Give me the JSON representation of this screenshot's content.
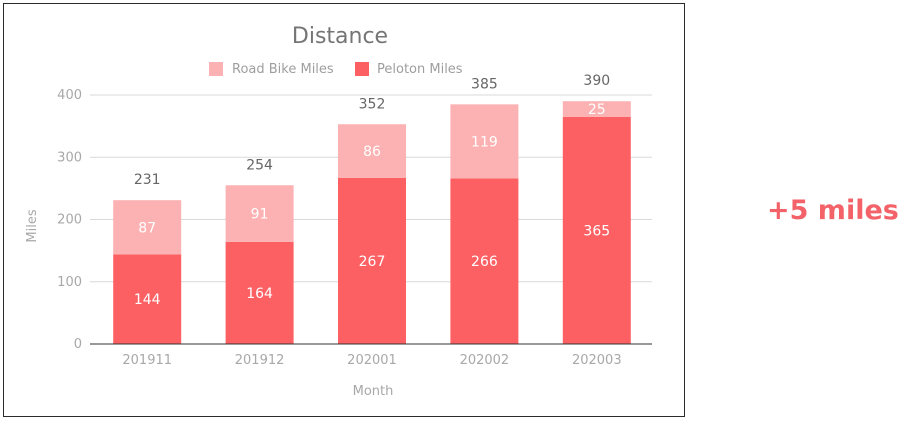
{
  "chart_data": {
    "type": "bar",
    "stacked": true,
    "title": "Distance",
    "xlabel": "Month",
    "ylabel": "Miles",
    "ylim": [
      0,
      400
    ],
    "yticks": [
      "0",
      "100",
      "200",
      "300",
      "400"
    ],
    "categories": [
      "201911",
      "201912",
      "202001",
      "202002",
      "202003"
    ],
    "series": [
      {
        "name": "Peloton Miles",
        "color": "#fd6063",
        "values": [
          144,
          164,
          267,
          266,
          365
        ],
        "labels": [
          "144",
          "164",
          "267",
          "266",
          "365"
        ]
      },
      {
        "name": "Road Bike Miles",
        "color": "#fcb1b2",
        "values": [
          87,
          91,
          86,
          119,
          25
        ],
        "labels": [
          "87",
          "91",
          "86",
          "119",
          "25"
        ]
      }
    ],
    "totals": [
      "231",
      "254",
      "352",
      "385",
      "390"
    ],
    "legend": [
      "Road Bike Miles",
      "Peloton Miles"
    ],
    "legend_position": "top",
    "grid": true
  },
  "callout": {
    "text": "+5 miles",
    "color": "#f26268"
  }
}
